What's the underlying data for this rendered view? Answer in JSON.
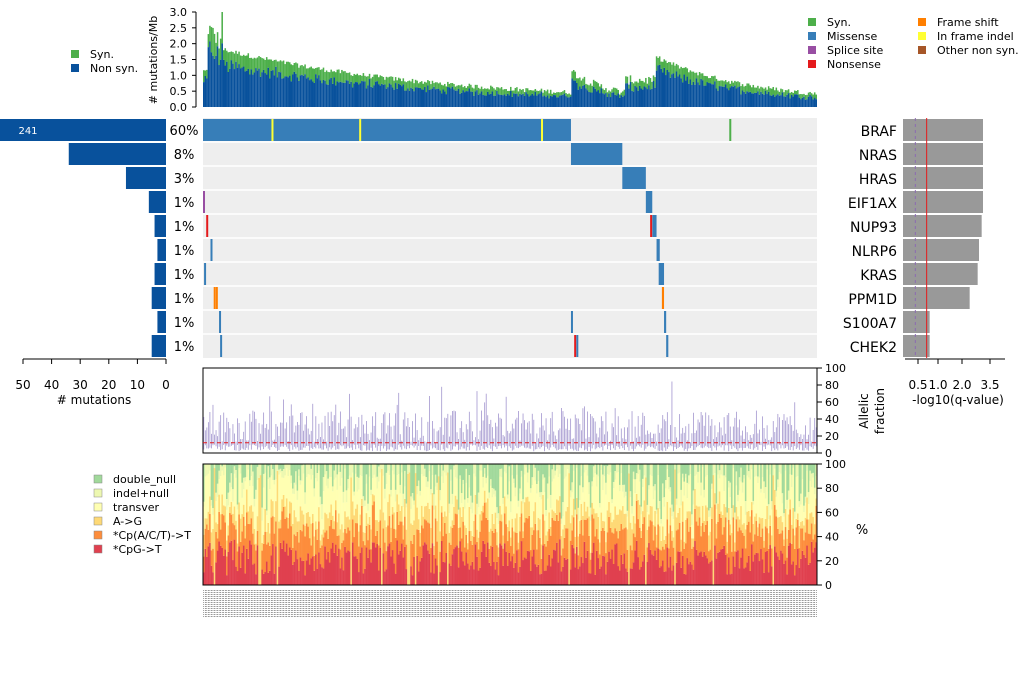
{
  "chart_data": {
    "type": "comutation-plot",
    "colors": {
      "syn": "#4daf4a",
      "missense": "#377eb8",
      "splice_site": "#984ea3",
      "nonsense": "#e41a1c",
      "frame_shift": "#ff7f00",
      "in_frame_indel": "#ffff33",
      "other_non_syn": "#a65628",
      "non_syn_bar": "#08519c",
      "grid_bg": "#eeeeee",
      "sig_bar": "#999999",
      "q_line": "#e41a1c",
      "q_dash": "#8c6bb1",
      "af_line": "#8c7cc3",
      "af_median": "#e41a1c"
    },
    "sample_count": 400,
    "tmb": {
      "ylabel": "# mutations/Mb",
      "ylim": [
        0,
        3.0
      ],
      "ticks": [
        "0.0",
        "0.5",
        "1.0",
        "1.5",
        "2.0",
        "2.5",
        "3.0"
      ],
      "legend": [
        {
          "label": "Syn.",
          "color": "#4daf4a"
        },
        {
          "label": "Non syn.",
          "color": "#08519c"
        }
      ]
    },
    "mutation_legend": [
      {
        "label": "Syn.",
        "color": "#4daf4a"
      },
      {
        "label": "Missense",
        "color": "#377eb8"
      },
      {
        "label": "Splice site",
        "color": "#984ea3"
      },
      {
        "label": "Nonsense",
        "color": "#e41a1c"
      },
      {
        "label": "Frame shift",
        "color": "#ff7f00"
      },
      {
        "label": "In frame indel",
        "color": "#ffff33"
      },
      {
        "label": "Other non syn.",
        "color": "#a65628"
      }
    ],
    "genes": [
      {
        "name": "BRAF",
        "pct": "60%",
        "count": 241,
        "neglog10q": 3.0
      },
      {
        "name": "NRAS",
        "pct": "8%",
        "count": 34,
        "neglog10q": 3.0
      },
      {
        "name": "HRAS",
        "pct": "3%",
        "count": 14,
        "neglog10q": 3.0
      },
      {
        "name": "EIF1AX",
        "pct": "1%",
        "count": 6,
        "neglog10q": 3.0
      },
      {
        "name": "NUP93",
        "pct": "1%",
        "count": 4,
        "neglog10q": 2.95
      },
      {
        "name": "NLRP6",
        "pct": "1%",
        "count": 3,
        "neglog10q": 2.85
      },
      {
        "name": "KRAS",
        "pct": "1%",
        "count": 4,
        "neglog10q": 2.8
      },
      {
        "name": "PPM1D",
        "pct": "1%",
        "count": 5,
        "neglog10q": 2.5
      },
      {
        "name": "S100A7",
        "pct": "1%",
        "count": 3,
        "neglog10q": 1.0
      },
      {
        "name": "CHEK2",
        "pct": "1%",
        "count": 5,
        "neglog10q": 1.0
      }
    ],
    "count_axis": {
      "xlabel": "# mutations",
      "ticks": [
        "50",
        "40",
        "30",
        "20",
        "10",
        "0"
      ],
      "xlim": [
        50,
        0
      ],
      "overflow_label": "241"
    },
    "q_axis": {
      "xlabel": "-log10(q-value)",
      "ticks": [
        "0.5",
        "1.0",
        "2.0",
        "3.5"
      ],
      "threshold": 1.0,
      "dashed": 0.5
    },
    "allelic_fraction": {
      "ylabel": [
        "Allelic",
        "fraction"
      ],
      "ticks": [
        "0",
        "20",
        "40",
        "60",
        "80",
        "100"
      ],
      "ylim": [
        0,
        100
      ],
      "median": 12
    },
    "spectrum": {
      "ylabel": "%",
      "ticks": [
        "0",
        "20",
        "40",
        "60",
        "80",
        "100"
      ],
      "legend": [
        {
          "label": "double_null",
          "color": "#a1d99b"
        },
        {
          "label": "indel+null",
          "color": "#edf8b1"
        },
        {
          "label": "transver",
          "color": "#ffffb2"
        },
        {
          "label": "A->G",
          "color": "#fed976"
        },
        {
          "label": "*Cp(A/C/T)->T",
          "color": "#fd8d3c"
        },
        {
          "label": "*CpG->T",
          "color": "#e0404f"
        }
      ]
    }
  }
}
